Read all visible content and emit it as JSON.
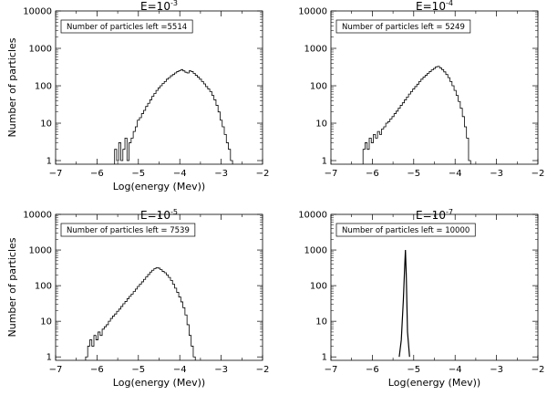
{
  "chart_data": [
    {
      "type": "line",
      "step": true,
      "log_y": true,
      "title_base": "E=10",
      "title_exp": "-3",
      "annotation": "Number of particles left =5514",
      "xlabel": "Log(energy (Mev))",
      "ylabel": "Number of particles",
      "xlim": [
        -7,
        -2
      ],
      "ylim": [
        0.8,
        10000
      ],
      "xticks": [
        -7,
        -6,
        -5,
        -4,
        -3,
        -2
      ],
      "yticks": [
        1,
        10,
        100,
        1000,
        10000
      ],
      "grid": false,
      "x": [
        -5.55,
        -5.5,
        -5.45,
        -5.4,
        -5.35,
        -5.3,
        -5.25,
        -5.2,
        -5.15,
        -5.1,
        -5.05,
        -5.0,
        -4.95,
        -4.9,
        -4.85,
        -4.8,
        -4.75,
        -4.7,
        -4.65,
        -4.6,
        -4.55,
        -4.5,
        -4.45,
        -4.4,
        -4.35,
        -4.3,
        -4.25,
        -4.2,
        -4.15,
        -4.1,
        -4.05,
        -4.0,
        -3.95,
        -3.9,
        -3.85,
        -3.8,
        -3.75,
        -3.7,
        -3.65,
        -3.6,
        -3.55,
        -3.5,
        -3.45,
        -3.4,
        -3.35,
        -3.3,
        -3.25,
        -3.2,
        -3.15,
        -3.1,
        -3.05,
        -3.0,
        -2.95,
        -2.9,
        -2.85,
        -2.8,
        -2.75
      ],
      "y": [
        2,
        1,
        3,
        1,
        2,
        4,
        1,
        3,
        4,
        6,
        8,
        12,
        14,
        18,
        22,
        28,
        34,
        42,
        52,
        62,
        75,
        88,
        100,
        115,
        130,
        150,
        165,
        185,
        200,
        220,
        240,
        255,
        270,
        250,
        230,
        220,
        250,
        240,
        215,
        190,
        170,
        150,
        130,
        112,
        95,
        82,
        70,
        55,
        42,
        30,
        20,
        12,
        8,
        5,
        3,
        2,
        1
      ]
    },
    {
      "type": "line",
      "step": true,
      "log_y": true,
      "title_base": "E=10",
      "title_exp": "-4",
      "annotation": "Number of particles left = 5249",
      "xlabel": "",
      "ylabel": "",
      "xlim": [
        -7,
        -2
      ],
      "ylim": [
        0.8,
        10000
      ],
      "xticks": [
        -7,
        -6,
        -5,
        -4,
        -3,
        -2
      ],
      "yticks": [
        1,
        10,
        100,
        1000,
        10000
      ],
      "grid": false,
      "x": [
        -6.2,
        -6.15,
        -6.1,
        -6.05,
        -6.0,
        -5.95,
        -5.9,
        -5.85,
        -5.8,
        -5.75,
        -5.7,
        -5.65,
        -5.6,
        -5.55,
        -5.5,
        -5.45,
        -5.4,
        -5.35,
        -5.3,
        -5.25,
        -5.2,
        -5.15,
        -5.1,
        -5.05,
        -5.0,
        -4.95,
        -4.9,
        -4.85,
        -4.8,
        -4.75,
        -4.7,
        -4.65,
        -4.6,
        -4.55,
        -4.5,
        -4.45,
        -4.4,
        -4.35,
        -4.3,
        -4.25,
        -4.2,
        -4.15,
        -4.1,
        -4.05,
        -4.0,
        -3.95,
        -3.9,
        -3.85,
        -3.8,
        -3.75,
        -3.7,
        -3.65
      ],
      "y": [
        2,
        3,
        2,
        4,
        3,
        5,
        4,
        6,
        5,
        7,
        8,
        10,
        11,
        13,
        15,
        18,
        21,
        25,
        30,
        35,
        42,
        50,
        60,
        70,
        82,
        95,
        110,
        130,
        150,
        170,
        190,
        215,
        240,
        265,
        290,
        320,
        330,
        300,
        270,
        235,
        200,
        165,
        130,
        100,
        75,
        55,
        38,
        25,
        15,
        8,
        4,
        1
      ]
    },
    {
      "type": "line",
      "step": true,
      "log_y": true,
      "title_base": "E=10",
      "title_exp": "-5",
      "annotation": "Number of particles left = 7539",
      "xlabel": "Log(energy (Mev))",
      "ylabel": "Number of particles",
      "xlim": [
        -7,
        -2
      ],
      "ylim": [
        0.8,
        10000
      ],
      "xticks": [
        -7,
        -6,
        -5,
        -4,
        -3,
        -2
      ],
      "yticks": [
        1,
        10,
        100,
        1000,
        10000
      ],
      "grid": false,
      "x": [
        -6.25,
        -6.2,
        -6.15,
        -6.1,
        -6.05,
        -6.0,
        -5.95,
        -5.9,
        -5.85,
        -5.8,
        -5.75,
        -5.7,
        -5.65,
        -5.6,
        -5.55,
        -5.5,
        -5.45,
        -5.4,
        -5.35,
        -5.3,
        -5.25,
        -5.2,
        -5.15,
        -5.1,
        -5.05,
        -5.0,
        -4.95,
        -4.9,
        -4.85,
        -4.8,
        -4.75,
        -4.7,
        -4.65,
        -4.6,
        -4.55,
        -4.5,
        -4.45,
        -4.4,
        -4.35,
        -4.3,
        -4.25,
        -4.2,
        -4.15,
        -4.1,
        -4.05,
        -4.0,
        -3.95,
        -3.9,
        -3.85,
        -3.8,
        -3.75,
        -3.7,
        -3.65
      ],
      "y": [
        1,
        2,
        3,
        2,
        4,
        3,
        5,
        4,
        6,
        7,
        8,
        10,
        12,
        14,
        16,
        19,
        22,
        26,
        31,
        36,
        43,
        50,
        58,
        68,
        80,
        95,
        110,
        128,
        150,
        175,
        205,
        240,
        270,
        300,
        320,
        310,
        280,
        250,
        230,
        200,
        170,
        140,
        110,
        85,
        65,
        48,
        35,
        24,
        15,
        8,
        4,
        2,
        1
      ]
    },
    {
      "type": "line",
      "step": false,
      "log_y": true,
      "title_base": "E=10",
      "title_exp": "-7",
      "annotation": "Number of particles left = 10000",
      "xlabel": "Log(energy (Mev))",
      "ylabel": "",
      "xlim": [
        -7,
        -2
      ],
      "ylim": [
        0.8,
        10000
      ],
      "xticks": [
        -7,
        -6,
        -5,
        -4,
        -3,
        -2
      ],
      "yticks": [
        1,
        10,
        100,
        1000,
        10000
      ],
      "grid": false,
      "x": [
        -5.35,
        -5.3,
        -5.25,
        -5.22,
        -5.2,
        -5.18,
        -5.15,
        -5.1
      ],
      "y": [
        1,
        3,
        40,
        300,
        1000,
        200,
        5,
        1
      ]
    }
  ]
}
